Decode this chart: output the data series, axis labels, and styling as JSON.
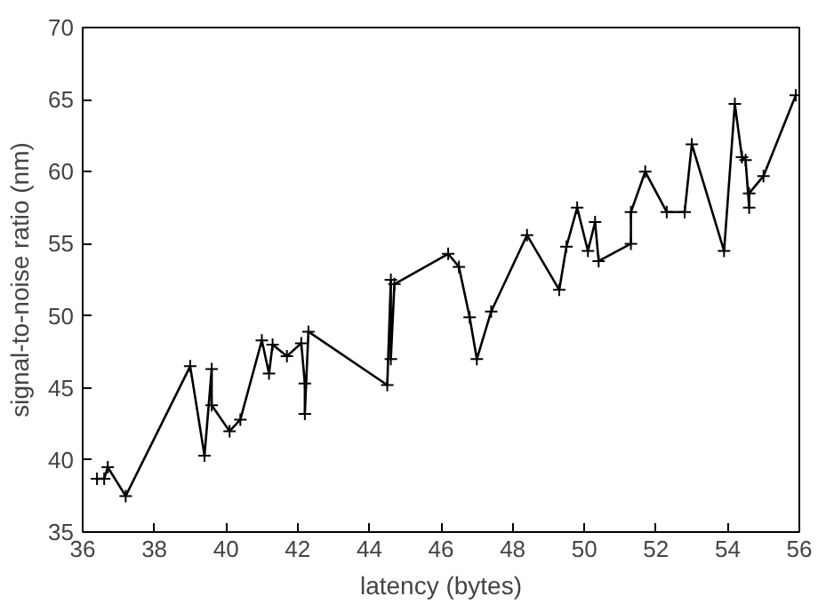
{
  "chart_data": {
    "type": "line",
    "xlabel": "latency (bytes)",
    "ylabel": "signal-to-noise ratio (nm)",
    "xlim": [
      36,
      56
    ],
    "ylim": [
      35,
      70
    ],
    "xticks": [
      36,
      38,
      40,
      42,
      44,
      46,
      48,
      50,
      52,
      54,
      56
    ],
    "yticks": [
      35,
      40,
      45,
      50,
      55,
      60,
      65,
      70
    ],
    "grid": false,
    "marker": "cross",
    "line_style": "solid",
    "series": [
      {
        "color": "#000000",
        "x": [
          36.4,
          36.6,
          36.7,
          37.2,
          39.0,
          39.4,
          39.6,
          39.6,
          40.1,
          40.4,
          41.0,
          41.2,
          41.3,
          41.7,
          42.1,
          42.2,
          42.2,
          42.3,
          44.5,
          44.6,
          44.6,
          44.7,
          46.2,
          46.5,
          46.8,
          47.0,
          47.4,
          48.4,
          49.3,
          49.5,
          49.8,
          50.1,
          50.3,
          50.4,
          51.3,
          51.3,
          51.7,
          52.3,
          52.8,
          53.0,
          53.9,
          54.2,
          54.4,
          54.5,
          54.6,
          54.6,
          55.0,
          55.9
        ],
        "values": [
          38.7,
          38.7,
          39.5,
          37.5,
          46.5,
          40.3,
          46.3,
          43.8,
          42.0,
          42.8,
          48.3,
          46.0,
          48.0,
          47.2,
          48.1,
          45.3,
          43.2,
          48.9,
          45.2,
          52.5,
          47.0,
          52.2,
          54.3,
          53.4,
          49.9,
          47.0,
          50.3,
          55.6,
          51.8,
          54.8,
          57.5,
          54.5,
          56.5,
          53.8,
          55.0,
          57.2,
          60.0,
          57.2,
          57.2,
          61.9,
          54.5,
          64.7,
          61.0,
          60.8,
          57.5,
          58.5,
          59.7,
          65.3
        ]
      }
    ]
  }
}
